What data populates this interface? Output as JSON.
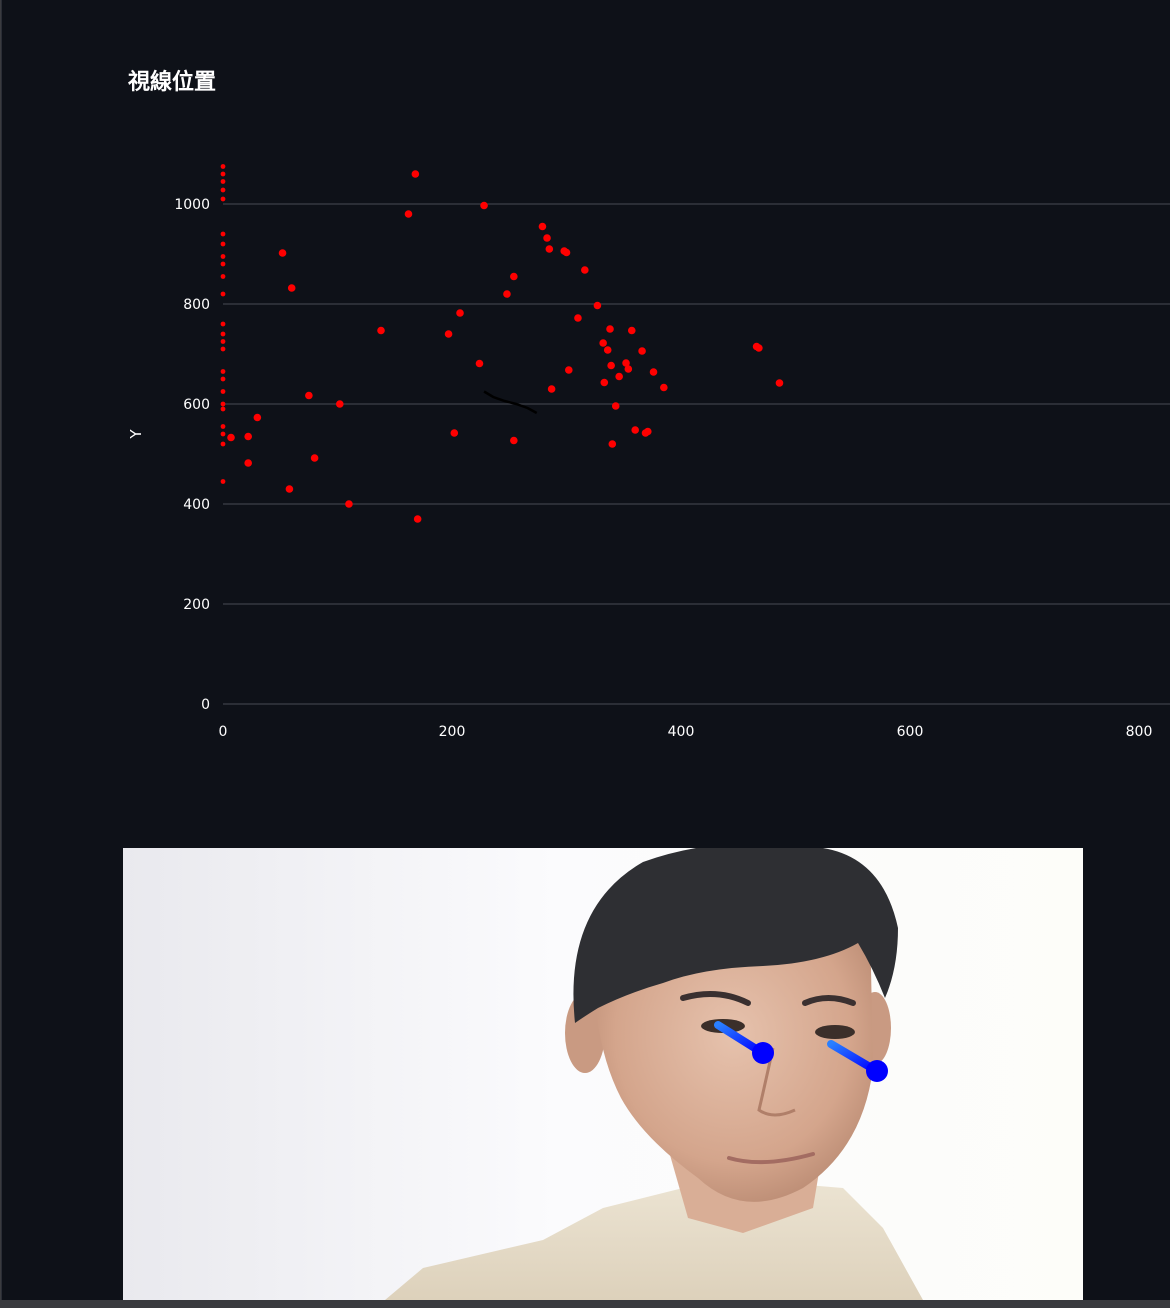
{
  "title": "視線位置",
  "chart_data": {
    "type": "scatter",
    "title": "",
    "xlabel": "",
    "ylabel": "Y",
    "xlim": [
      0,
      830
    ],
    "ylim": [
      0,
      1080
    ],
    "x_ticks": [
      0,
      200,
      400,
      600,
      800
    ],
    "y_ticks": [
      0,
      200,
      400,
      600,
      800,
      1000
    ],
    "grid": "horizontal",
    "point_color": "#ff0000",
    "trail_color": "#000000",
    "series": [
      {
        "points": [
          [
            0,
            1075
          ],
          [
            0,
            1060
          ],
          [
            0,
            1045
          ],
          [
            0,
            1028
          ],
          [
            0,
            1010
          ],
          [
            0,
            940
          ],
          [
            0,
            920
          ],
          [
            0,
            895
          ],
          [
            0,
            880
          ],
          [
            0,
            855
          ],
          [
            0,
            820
          ],
          [
            0,
            760
          ],
          [
            0,
            740
          ],
          [
            0,
            725
          ],
          [
            0,
            710
          ],
          [
            0,
            665
          ],
          [
            0,
            650
          ],
          [
            0,
            625
          ],
          [
            0,
            600
          ],
          [
            0,
            590
          ],
          [
            0,
            555
          ],
          [
            0,
            540
          ],
          [
            0,
            520
          ],
          [
            0,
            445
          ],
          [
            7,
            533
          ],
          [
            22,
            535
          ],
          [
            22,
            482
          ],
          [
            30,
            573
          ],
          [
            52,
            902
          ],
          [
            58,
            430
          ],
          [
            60,
            832
          ],
          [
            75,
            617
          ],
          [
            80,
            492
          ],
          [
            102,
            600
          ],
          [
            110,
            400
          ],
          [
            138,
            747
          ],
          [
            162,
            980
          ],
          [
            168,
            1060
          ],
          [
            170,
            370
          ],
          [
            197,
            740
          ],
          [
            202,
            542
          ],
          [
            207,
            782
          ],
          [
            224,
            681
          ],
          [
            228,
            997
          ],
          [
            248,
            820
          ],
          [
            254,
            855
          ],
          [
            254,
            527
          ],
          [
            279,
            955
          ],
          [
            283,
            932
          ],
          [
            285,
            910
          ],
          [
            287,
            630
          ],
          [
            298,
            906
          ],
          [
            300,
            903
          ],
          [
            302,
            668
          ],
          [
            310,
            772
          ],
          [
            316,
            868
          ],
          [
            327,
            797
          ],
          [
            332,
            722
          ],
          [
            333,
            643
          ],
          [
            336,
            708
          ],
          [
            338,
            750
          ],
          [
            339,
            677
          ],
          [
            340,
            520
          ],
          [
            343,
            596
          ],
          [
            346,
            655
          ],
          [
            352,
            682
          ],
          [
            354,
            670
          ],
          [
            357,
            747
          ],
          [
            360,
            548
          ],
          [
            366,
            706
          ],
          [
            369,
            542
          ],
          [
            371,
            545
          ],
          [
            376,
            664
          ],
          [
            385,
            633
          ],
          [
            466,
            715
          ],
          [
            468,
            712
          ],
          [
            486,
            642
          ]
        ]
      },
      {
        "style": "trail",
        "points": [
          [
            228,
            625
          ],
          [
            236,
            614
          ],
          [
            246,
            606
          ],
          [
            256,
            600
          ],
          [
            266,
            592
          ],
          [
            274,
            582
          ]
        ]
      }
    ]
  },
  "webcam": {
    "background": "#f4f4f6",
    "arrow_color": "#0000ff"
  }
}
